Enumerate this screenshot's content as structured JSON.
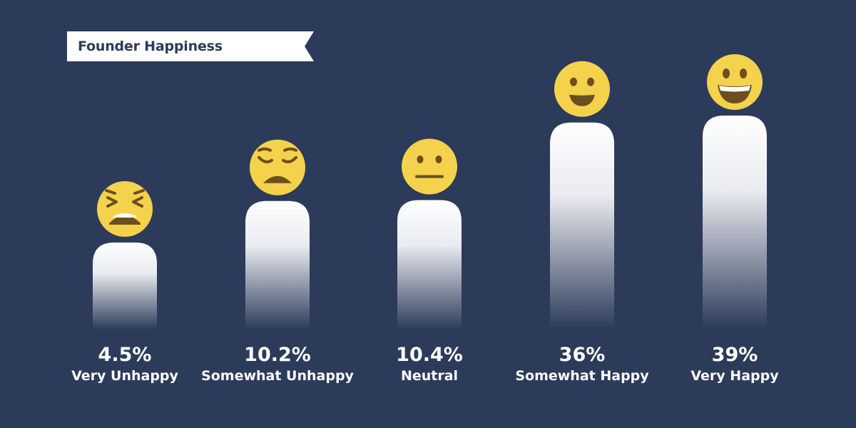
{
  "title": "Founder Happiness",
  "colors": {
    "background": "#2c3b5a",
    "banner": "#ffffff",
    "bar_top": "#ffffff",
    "bar_bottom": "#2c3b5a",
    "emoji_face": "#f5d24b",
    "emoji_feature": "#6b4f1e"
  },
  "chart_data": {
    "type": "bar",
    "title": "Founder Happiness",
    "categories": [
      "Very Unhappy",
      "Somewhat Unhappy",
      "Neutral",
      "Somewhat Happy",
      "Very Happy"
    ],
    "values": [
      4.5,
      10.2,
      10.4,
      36,
      39
    ],
    "value_labels": [
      "4.5%",
      "10.2%",
      "10.4%",
      "36%",
      "39%"
    ],
    "icons": [
      "tired-face-icon",
      "pensive-face-icon",
      "neutral-face-icon",
      "smiling-face-icon",
      "grinning-face-icon"
    ],
    "xlabel": "",
    "ylabel": "",
    "grid": false,
    "legend": "none"
  }
}
